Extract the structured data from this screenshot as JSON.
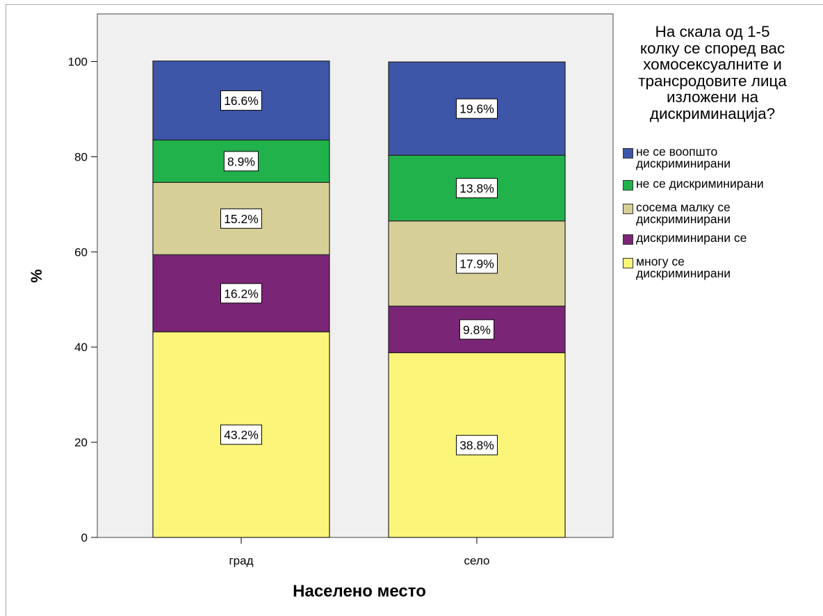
{
  "chart_data": {
    "type": "bar",
    "stacked": true,
    "categories": [
      "град",
      "село"
    ],
    "series": [
      {
        "name": "многу се дискриминирани",
        "color": "#fbf579",
        "values": [
          43.2,
          38.8
        ],
        "labels": [
          "43.2%",
          "38.8%"
        ]
      },
      {
        "name": "дискриминирани се",
        "color": "#7b2576",
        "values": [
          16.2,
          9.8
        ],
        "labels": [
          "16.2%",
          "9.8%"
        ]
      },
      {
        "name": "сосема малку се дискриминирани",
        "color": "#d7cf98",
        "values": [
          15.2,
          17.9
        ],
        "labels": [
          "15.2%",
          "17.9%"
        ]
      },
      {
        "name": "не се  дискриминирани",
        "color": "#21b24b",
        "values": [
          8.9,
          13.8
        ],
        "labels": [
          "8.9%",
          "13.8%"
        ]
      },
      {
        "name": "не се воопшто дискриминирани",
        "color": "#3d56a8",
        "values": [
          16.6,
          19.6
        ],
        "labels": [
          "16.6%",
          "19.6%"
        ]
      }
    ],
    "xlabel": "Населено место",
    "ylabel": "%",
    "ylim": [
      0,
      110
    ],
    "yticks": [
      0,
      20,
      40,
      60,
      80,
      100
    ],
    "plot_background": "#f0f0f0",
    "grid": false,
    "legend": {
      "title": "На скала од 1-5 колку се според вас хомосексуалните и трансродовите лица изложени на дискриминација?",
      "title_lines": [
        "На скала од 1-5",
        "колку се според вас",
        "хомосексуалните и",
        "трансродовите лица",
        "изложени на",
        "дискриминација?"
      ],
      "placement": "right",
      "order": [
        "не се воопшто дискриминирани",
        "не се  дискриминирани",
        "сосема малку се дискриминирани",
        "дискриминирани се",
        "многу се дискриминирани"
      ],
      "label_lines": [
        [
          "не се воопшто",
          "дискриминирани"
        ],
        [
          "не се  дискриминирани"
        ],
        [
          "сосема малку се",
          "дискриминирани"
        ],
        [
          "дискриминирани се"
        ],
        [
          "многу се",
          "дискриминирани"
        ]
      ]
    }
  }
}
